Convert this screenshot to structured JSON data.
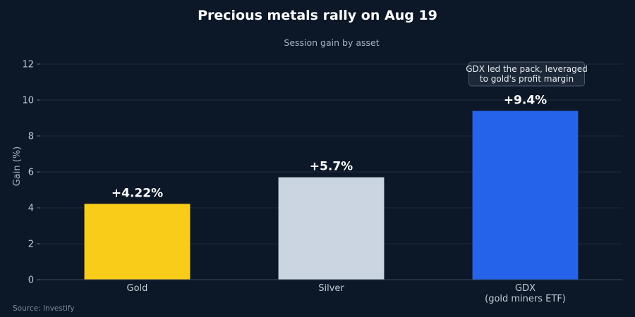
{
  "chart_data": {
    "type": "bar",
    "title": "Precious metals rally on Aug 19",
    "subtitle": "Session gain by asset",
    "xlabel": "",
    "ylabel": "Gain (%)",
    "ylim": [
      0,
      12
    ],
    "yticks": [
      0,
      2,
      4,
      6,
      8,
      10,
      12
    ],
    "grid": true,
    "categories": [
      [
        "Gold"
      ],
      [
        "Silver"
      ],
      [
        "GDX",
        "(gold miners ETF)"
      ]
    ],
    "values": [
      4.22,
      5.7,
      9.4
    ],
    "data_labels": [
      "+4.22%",
      "+5.7%",
      "+9.4%"
    ],
    "colors": [
      "#f9cc1a",
      "#cbd5e1",
      "#2563eb"
    ],
    "annotation": {
      "target_index": 2,
      "lines": [
        "GDX led the pack, leveraged",
        "to gold's profit margin"
      ]
    },
    "source": "Source: Investify"
  }
}
